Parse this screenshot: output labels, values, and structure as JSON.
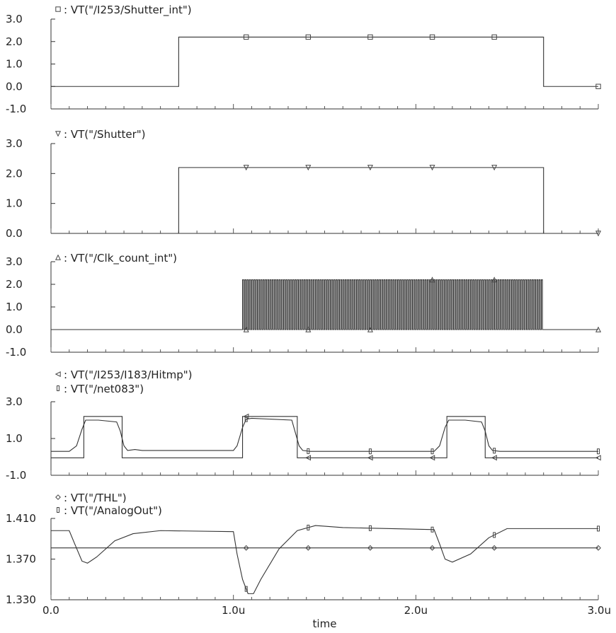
{
  "chart_data": [
    {
      "type": "line",
      "series": [
        {
          "name": "VT(\"/I253/Shutter_int\")",
          "marker": "square",
          "points": [
            [
              0,
              0
            ],
            [
              0.7,
              0
            ],
            [
              0.7,
              2.2
            ],
            [
              2.7,
              2.2
            ],
            [
              2.7,
              0
            ],
            [
              3.0,
              0
            ]
          ]
        }
      ],
      "y_ticks": [
        "3.0",
        "2.0",
        "1.0",
        "0.0",
        "-1.0"
      ],
      "ylim": [
        -1,
        3
      ]
    },
    {
      "type": "line",
      "series": [
        {
          "name": "VT(\"/Shutter\")",
          "marker": "triangle-down",
          "points": [
            [
              0,
              0
            ],
            [
              0.7,
              0
            ],
            [
              0.7,
              2.2
            ],
            [
              2.7,
              2.2
            ],
            [
              2.7,
              0
            ],
            [
              3.0,
              0
            ]
          ]
        }
      ],
      "y_ticks": [
        "3.0",
        "2.0",
        "1.0",
        "0.0"
      ],
      "ylim": [
        0,
        3
      ]
    },
    {
      "type": "line",
      "series": [
        {
          "name": "VT(\"/Clk_count_int\")",
          "marker": "triangle-up",
          "clock": {
            "start": 1.05,
            "end": 2.7,
            "period": 0.0125,
            "high": 2.2,
            "low": 0
          },
          "points": [
            [
              0,
              0
            ],
            [
              1.05,
              0
            ],
            [
              2.7,
              0
            ],
            [
              3.0,
              0
            ]
          ]
        }
      ],
      "y_ticks": [
        "3.0",
        "2.0",
        "1.0",
        "0.0",
        "-1.0"
      ],
      "ylim": [
        -1,
        3
      ]
    },
    {
      "type": "line",
      "series": [
        {
          "name": "VT(\"/I253/I183/Hitmp\")",
          "marker": "triangle-left",
          "points": [
            [
              0,
              -0.05
            ],
            [
              0.18,
              -0.05
            ],
            [
              0.18,
              2.2
            ],
            [
              0.39,
              2.2
            ],
            [
              0.39,
              -0.05
            ],
            [
              1.05,
              -0.05
            ],
            [
              1.05,
              2.2
            ],
            [
              1.35,
              2.2
            ],
            [
              1.35,
              -0.05
            ],
            [
              2.17,
              -0.05
            ],
            [
              2.17,
              2.2
            ],
            [
              2.38,
              2.2
            ],
            [
              2.38,
              -0.05
            ],
            [
              3.0,
              -0.05
            ]
          ]
        },
        {
          "name": "VT(\"/net083\")",
          "marker": "bar",
          "points": [
            [
              0,
              0.3
            ],
            [
              0.1,
              0.3
            ],
            [
              0.14,
              0.6
            ],
            [
              0.17,
              1.5
            ],
            [
              0.19,
              2.0
            ],
            [
              0.26,
              2.0
            ],
            [
              0.36,
              1.9
            ],
            [
              0.38,
              1.4
            ],
            [
              0.4,
              0.6
            ],
            [
              0.42,
              0.35
            ],
            [
              0.46,
              0.4
            ],
            [
              0.5,
              0.35
            ],
            [
              1.0,
              0.35
            ],
            [
              1.02,
              0.6
            ],
            [
              1.05,
              1.6
            ],
            [
              1.07,
              2.05
            ],
            [
              1.1,
              2.1
            ],
            [
              1.32,
              2.0
            ],
            [
              1.34,
              1.3
            ],
            [
              1.36,
              0.6
            ],
            [
              1.38,
              0.35
            ],
            [
              1.42,
              0.3
            ],
            [
              2.1,
              0.3
            ],
            [
              2.13,
              0.6
            ],
            [
              2.16,
              1.6
            ],
            [
              2.18,
              2.0
            ],
            [
              2.27,
              2.0
            ],
            [
              2.36,
              1.9
            ],
            [
              2.38,
              1.4
            ],
            [
              2.4,
              0.6
            ],
            [
              2.42,
              0.35
            ],
            [
              2.46,
              0.3
            ],
            [
              3.0,
              0.3
            ]
          ]
        }
      ],
      "y_ticks": [
        "3.0",
        "1.0",
        "-1.0"
      ],
      "ylim": [
        -1,
        3
      ]
    },
    {
      "type": "line",
      "xlabel": "time",
      "x_ticks": [
        "0.0",
        "1.0u",
        "2.0u",
        "3.0u"
      ],
      "series": [
        {
          "name": "VT(\"/THL\")",
          "marker": "diamond",
          "points": [
            [
              0,
              1.381
            ],
            [
              3.0,
              1.381
            ]
          ]
        },
        {
          "name": "VT(\"/AnalogOut\")",
          "marker": "bar",
          "points": [
            [
              0,
              1.398
            ],
            [
              0.1,
              1.398
            ],
            [
              0.13,
              1.385
            ],
            [
              0.17,
              1.368
            ],
            [
              0.2,
              1.366
            ],
            [
              0.25,
              1.372
            ],
            [
              0.35,
              1.388
            ],
            [
              0.45,
              1.395
            ],
            [
              0.6,
              1.398
            ],
            [
              1.0,
              1.397
            ],
            [
              1.02,
              1.375
            ],
            [
              1.05,
              1.35
            ],
            [
              1.08,
              1.336
            ],
            [
              1.11,
              1.336
            ],
            [
              1.15,
              1.35
            ],
            [
              1.25,
              1.38
            ],
            [
              1.35,
              1.398
            ],
            [
              1.45,
              1.403
            ],
            [
              1.6,
              1.401
            ],
            [
              2.1,
              1.399
            ],
            [
              2.13,
              1.385
            ],
            [
              2.16,
              1.37
            ],
            [
              2.2,
              1.367
            ],
            [
              2.3,
              1.375
            ],
            [
              2.4,
              1.391
            ],
            [
              2.5,
              1.4
            ],
            [
              2.7,
              1.4
            ],
            [
              3.0,
              1.4
            ]
          ]
        }
      ],
      "y_ticks": [
        "1.410",
        "1.370",
        "1.330"
      ],
      "ylim": [
        1.33,
        1.41
      ]
    }
  ]
}
